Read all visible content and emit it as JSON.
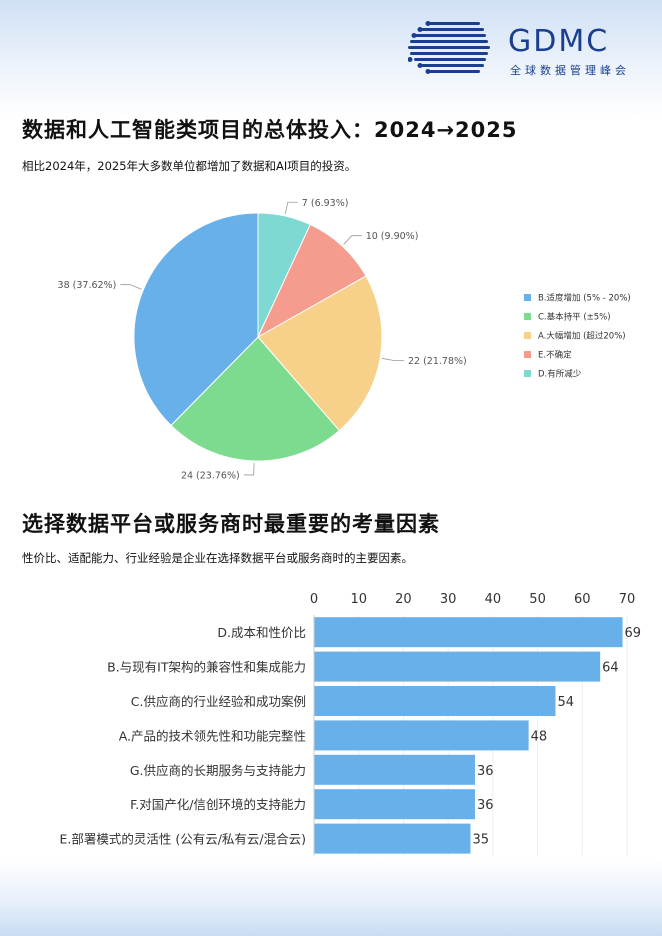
{
  "brand": {
    "name": "GDMC",
    "subtitle": "全球数据管理峰会"
  },
  "section1": {
    "title": "数据和人工智能类项目的总体投入：2024→2025",
    "subtitle": "相比2024年，2025年大多数单位都增加了数据和AI项目的投资。"
  },
  "section2": {
    "title": "选择数据平台或服务商时最重要的考量因素",
    "subtitle": "性价比、适配能力、行业经验是企业在选择数据平台或服务商时的主要因素。"
  },
  "chart_data": [
    {
      "type": "pie",
      "slices": [
        {
          "label": "B.适度增加 (5% - 20%)",
          "value": 38,
          "percent": "37.62%",
          "color": "#67b0ea"
        },
        {
          "label": "C.基本持平 (±5%)",
          "value": 24,
          "percent": "23.76%",
          "color": "#7ddb8f"
        },
        {
          "label": "A.大幅增加 (超过20%)",
          "value": 22,
          "percent": "21.78%",
          "color": "#f7d08a"
        },
        {
          "label": "E.不确定",
          "value": 10,
          "percent": "9.90%",
          "color": "#f69c8f"
        },
        {
          "label": "D.有所减少",
          "value": 7,
          "percent": "6.93%",
          "color": "#7fd9d3"
        }
      ],
      "legend": "right"
    },
    {
      "type": "bar",
      "orientation": "horizontal",
      "categories": [
        "D.成本和性价比",
        "B.与现有IT架构的兼容性和集成能力",
        "C.供应商的行业经验和成功案例",
        "A.产品的技术领先性和功能完整性",
        "G.供应商的长期服务与支持能力",
        "F.对国产化/信创环境的支持能力",
        "E.部署模式的灵活性 (公有云/私有云/混合云)"
      ],
      "values": [
        69,
        64,
        54,
        48,
        36,
        36,
        35
      ],
      "xlim": [
        0,
        70
      ],
      "ticks": [
        0,
        10,
        20,
        30,
        40,
        50,
        60,
        70
      ],
      "axis_position": "top",
      "color": "#67b0ea"
    }
  ]
}
